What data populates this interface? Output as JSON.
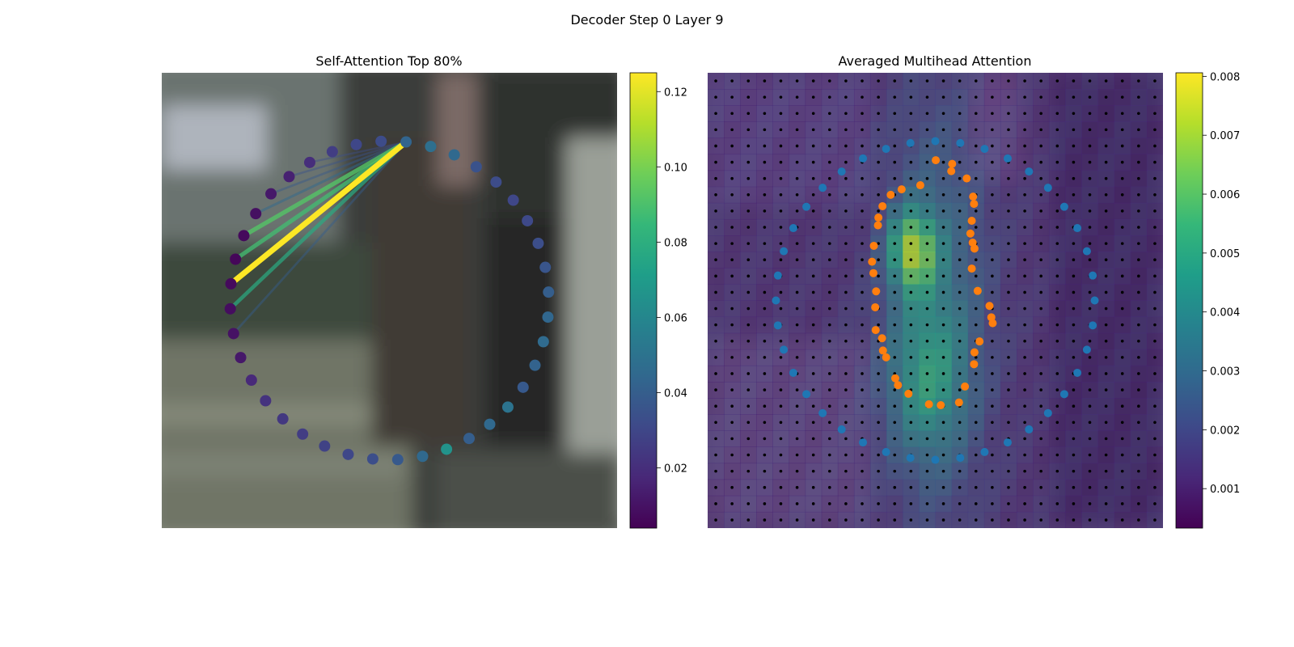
{
  "figure": {
    "title": "Decoder Step 0 Layer 9"
  },
  "chart_data": [
    {
      "type": "scatter",
      "title": "Self-Attention Top 80%",
      "description_of_background": "blurred street photo",
      "polygon": {
        "center": [
          0.5,
          0.5
        ],
        "radius": 0.35,
        "n_points": 40,
        "start_angle_deg": -84,
        "point_values": [
          0.043,
          0.048,
          0.045,
          0.035,
          0.032,
          0.03,
          0.031,
          0.033,
          0.036,
          0.04,
          0.044,
          0.046,
          0.042,
          0.038,
          0.05,
          0.045,
          0.04,
          0.066,
          0.045,
          0.038,
          0.033,
          0.03,
          0.028,
          0.026,
          0.024,
          0.022,
          0.018,
          0.012,
          0.01,
          0.008,
          0.007,
          0.006,
          0.007,
          0.009,
          0.012,
          0.015,
          0.02,
          0.026,
          0.03,
          0.032
        ]
      },
      "attention_lines": {
        "source_index": 0,
        "targets": [
          {
            "index": 30,
            "weight": 0.125
          },
          {
            "index": 29,
            "weight": 0.078
          },
          {
            "index": 31,
            "weight": 0.088
          },
          {
            "index": 32,
            "weight": 0.092
          },
          {
            "index": 33,
            "weight": 0.045
          },
          {
            "index": 34,
            "weight": 0.038
          },
          {
            "index": 35,
            "weight": 0.035
          },
          {
            "index": 28,
            "weight": 0.04
          },
          {
            "index": 36,
            "weight": 0.033
          }
        ]
      },
      "colorbar": {
        "colormap": "viridis",
        "range": [
          0.004,
          0.125
        ],
        "ticks": [
          "0.02",
          "0.04",
          "0.06",
          "0.08",
          "0.10",
          "0.12"
        ]
      }
    },
    {
      "type": "heatmap",
      "title": "Averaged Multihead Attention",
      "grid_size": 28,
      "hotspots": [
        {
          "cx": 0.45,
          "cy": 0.39,
          "sx": 0.035,
          "sy": 0.06,
          "v": 0.0048
        },
        {
          "cx": 0.5,
          "cy": 0.5,
          "sx": 0.08,
          "sy": 0.3,
          "v": 0.002
        },
        {
          "cx": 0.48,
          "cy": 0.68,
          "sx": 0.06,
          "sy": 0.12,
          "v": 0.0022
        }
      ],
      "base_value": 0.0012,
      "outer_ring": {
        "color": "#1f77b4",
        "center": [
          0.5,
          0.5
        ],
        "radius": 0.35,
        "n_points": 40
      },
      "inner_ring": {
        "color": "#ff7f0e",
        "points": [
          [
            0.467,
            0.247
          ],
          [
            0.426,
            0.256
          ],
          [
            0.402,
            0.268
          ],
          [
            0.384,
            0.293
          ],
          [
            0.375,
            0.318
          ],
          [
            0.374,
            0.335
          ],
          [
            0.365,
            0.38
          ],
          [
            0.361,
            0.415
          ],
          [
            0.364,
            0.44
          ],
          [
            0.37,
            0.48
          ],
          [
            0.368,
            0.515
          ],
          [
            0.369,
            0.565
          ],
          [
            0.383,
            0.583
          ],
          [
            0.385,
            0.61
          ],
          [
            0.392,
            0.625
          ],
          [
            0.412,
            0.671
          ],
          [
            0.418,
            0.686
          ],
          [
            0.441,
            0.705
          ],
          [
            0.486,
            0.728
          ],
          [
            0.512,
            0.73
          ],
          [
            0.552,
            0.724
          ],
          [
            0.565,
            0.689
          ],
          [
            0.585,
            0.64
          ],
          [
            0.586,
            0.614
          ],
          [
            0.597,
            0.59
          ],
          [
            0.626,
            0.55
          ],
          [
            0.623,
            0.537
          ],
          [
            0.619,
            0.512
          ],
          [
            0.593,
            0.479
          ],
          [
            0.58,
            0.43
          ],
          [
            0.586,
            0.386
          ],
          [
            0.582,
            0.373
          ],
          [
            0.577,
            0.353
          ],
          [
            0.58,
            0.325
          ],
          [
            0.585,
            0.288
          ],
          [
            0.583,
            0.272
          ],
          [
            0.569,
            0.232
          ],
          [
            0.535,
            0.216
          ],
          [
            0.537,
            0.2
          ],
          [
            0.501,
            0.192
          ]
        ]
      },
      "colorbar": {
        "colormap": "viridis",
        "range": [
          0.00033,
          0.00806
        ],
        "ticks": [
          "0.001",
          "0.002",
          "0.003",
          "0.004",
          "0.005",
          "0.006",
          "0.007",
          "0.008"
        ]
      }
    }
  ]
}
